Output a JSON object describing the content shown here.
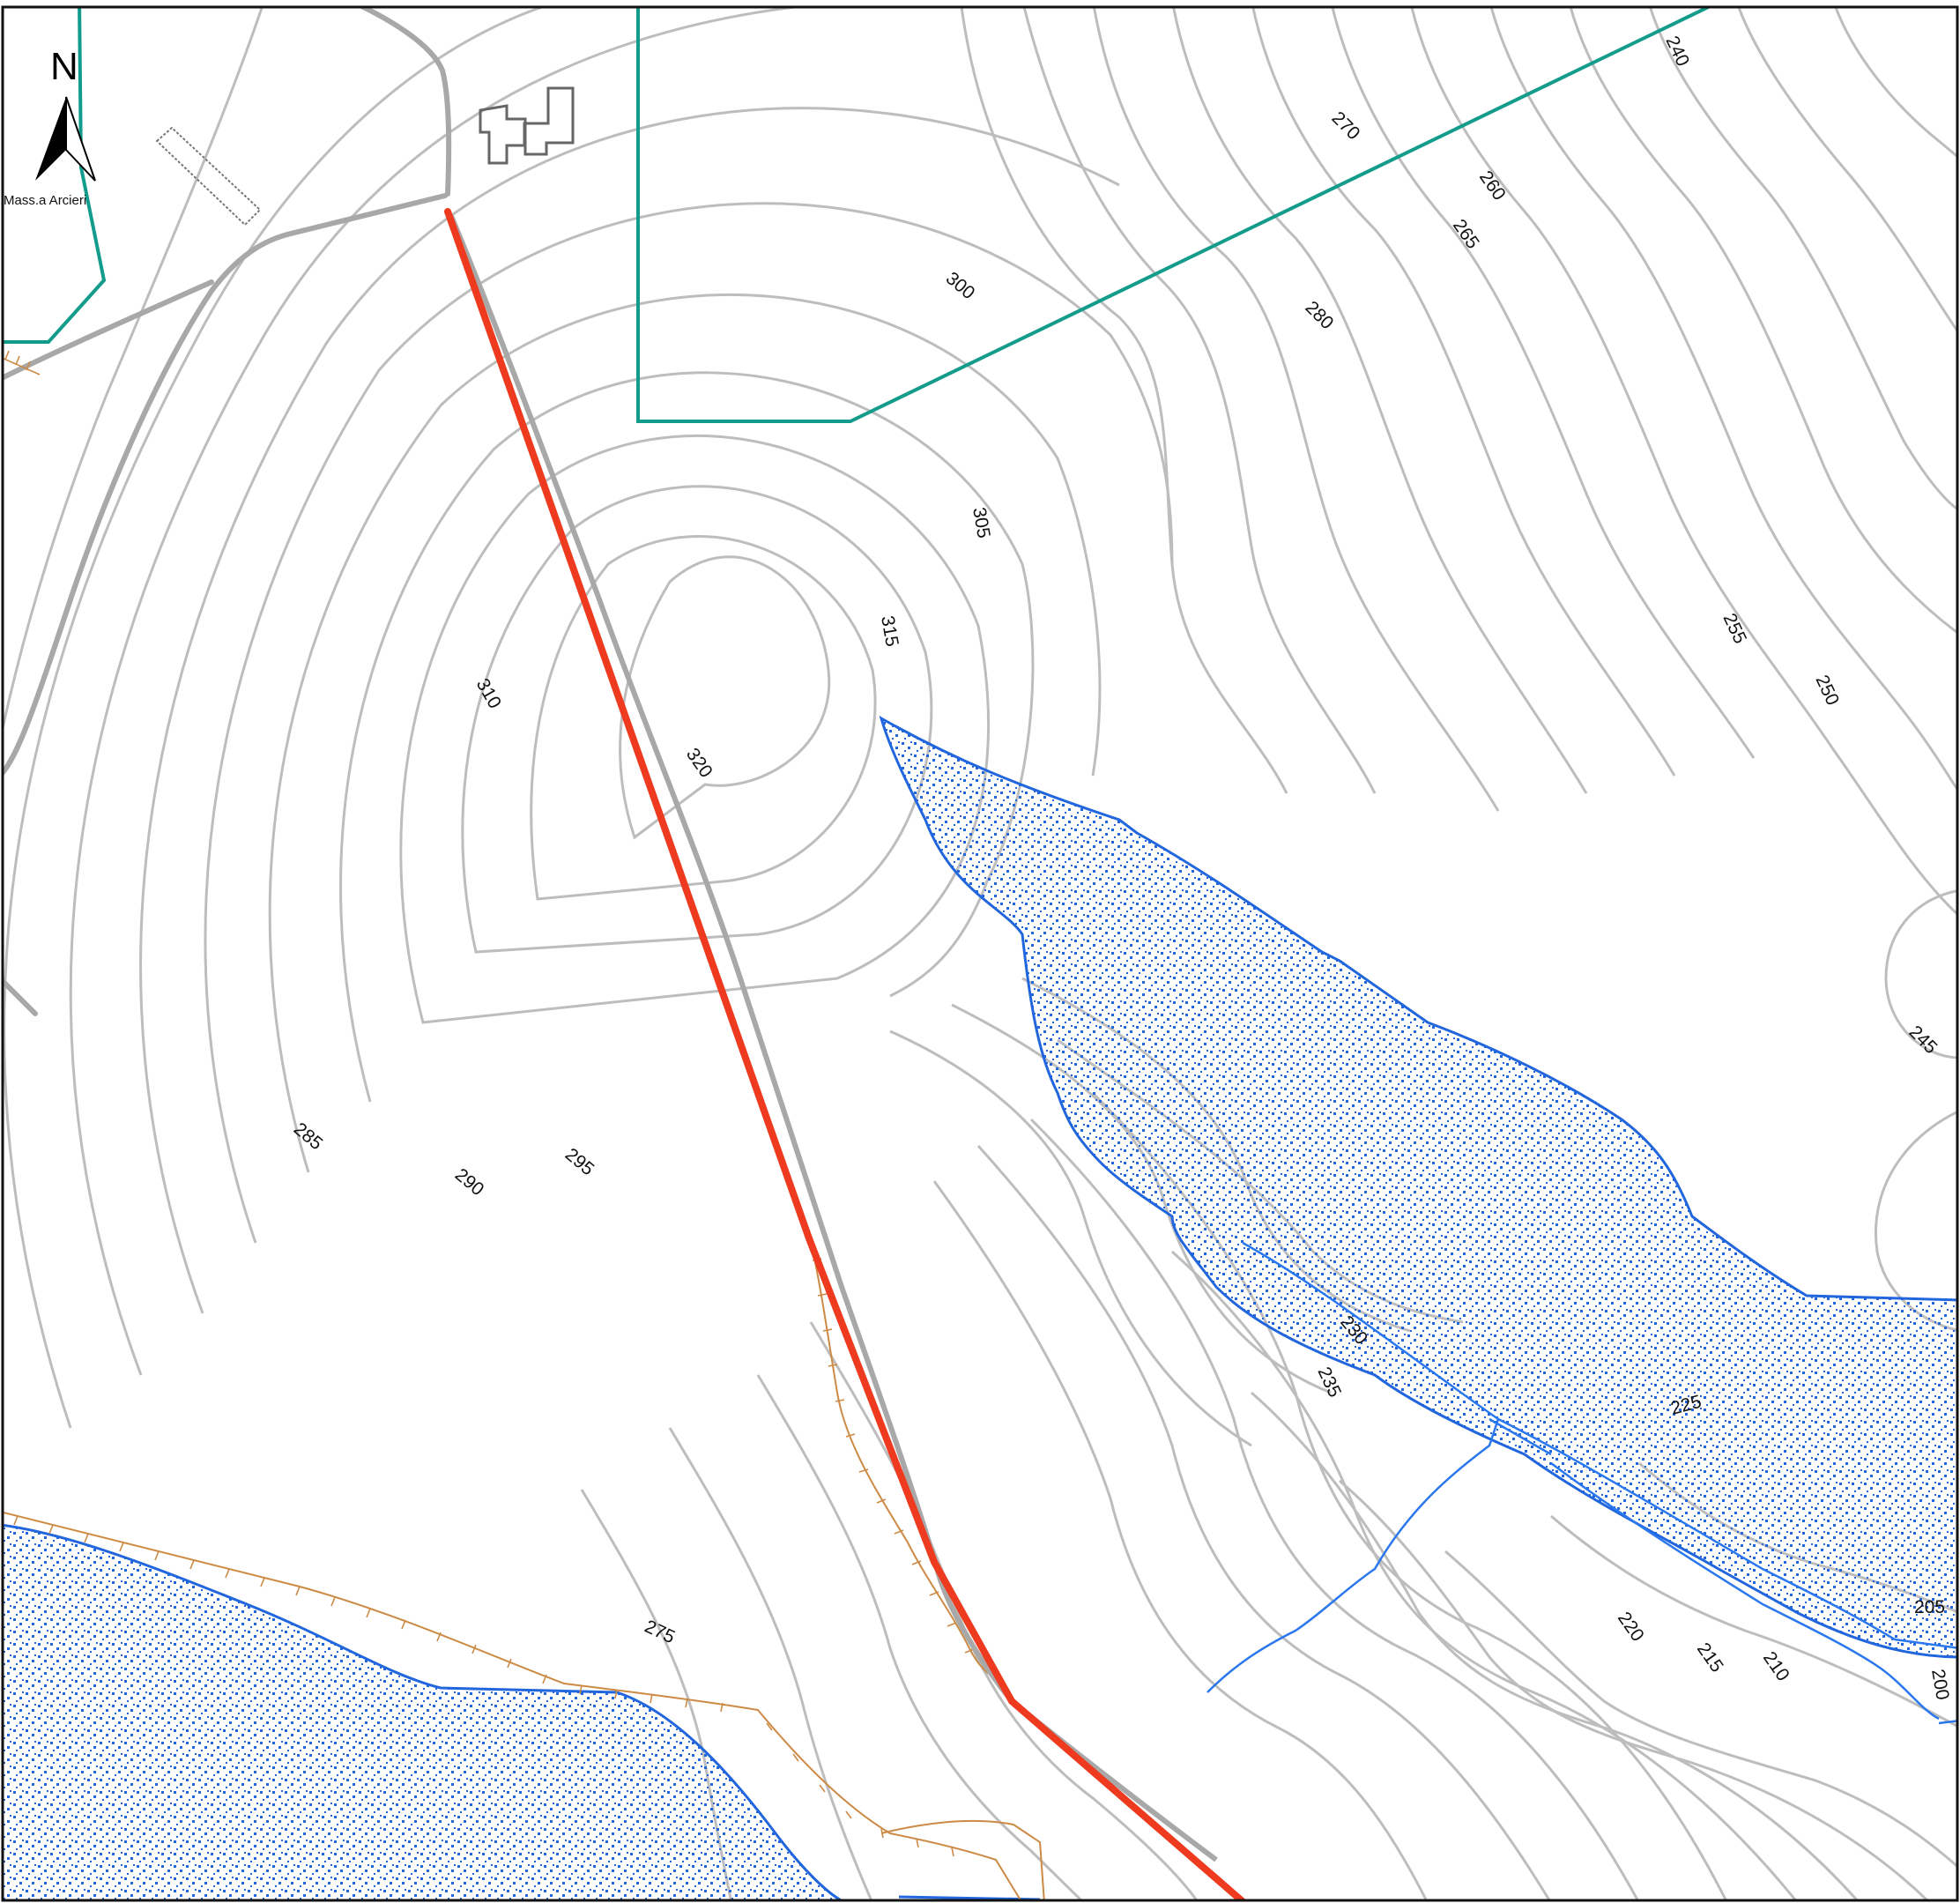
{
  "map": {
    "north_label": "N",
    "place_name": "Mass.a Arcieri",
    "contour_labels": [
      {
        "text": "240"
      },
      {
        "text": "270"
      },
      {
        "text": "260"
      },
      {
        "text": "265"
      },
      {
        "text": "300"
      },
      {
        "text": "280"
      },
      {
        "text": "305"
      },
      {
        "text": "315"
      },
      {
        "text": "310"
      },
      {
        "text": "320"
      },
      {
        "text": "255"
      },
      {
        "text": "250"
      },
      {
        "text": "245"
      },
      {
        "text": "285"
      },
      {
        "text": "290"
      },
      {
        "text": "295"
      },
      {
        "text": "230"
      },
      {
        "text": "235"
      },
      {
        "text": "225"
      },
      {
        "text": "275"
      },
      {
        "text": "220"
      },
      {
        "text": "215"
      },
      {
        "text": "210"
      },
      {
        "text": "205"
      },
      {
        "text": "200"
      }
    ],
    "colors": {
      "contour": "#bdbdbd",
      "route": "#ee3a1e",
      "boundary": "#139b8b",
      "water": "#2266dd",
      "scarp": "#cc8a45",
      "road": "#a8a8a8"
    }
  }
}
